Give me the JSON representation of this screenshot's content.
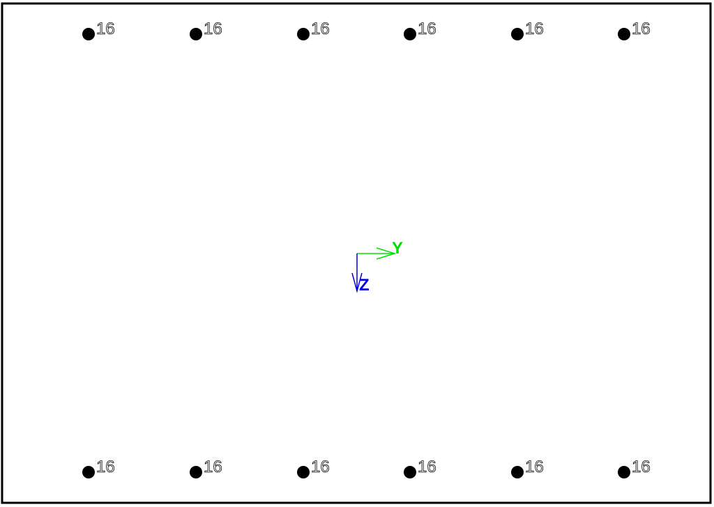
{
  "section": {
    "bar_label_text": "16",
    "top_row_count": 6,
    "bottom_row_count": 6
  },
  "axes": {
    "y_label": "Y",
    "z_label": "Z",
    "y_color": "#00e000",
    "z_color": "#0000e0"
  },
  "colors": {
    "border": "#000000",
    "bar": "#000000",
    "background": "#ffffff"
  }
}
